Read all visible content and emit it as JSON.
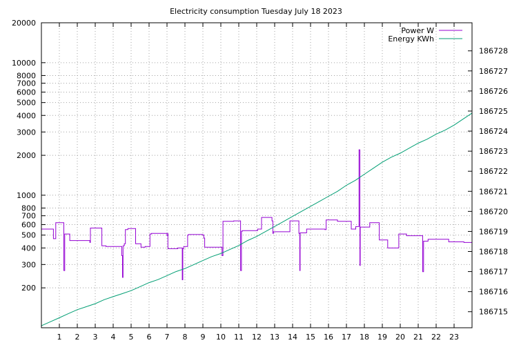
{
  "chart_data": {
    "type": "line",
    "title": "Electricity consumption Tuesday July 18 2023",
    "xlabel": "",
    "ylabel": "",
    "y2label": "",
    "grid": true,
    "legend_position": "top-right",
    "xlim": [
      0,
      24
    ],
    "x_ticks": [
      1,
      2,
      3,
      4,
      5,
      6,
      7,
      8,
      9,
      10,
      11,
      12,
      13,
      14,
      15,
      16,
      17,
      18,
      19,
      20,
      21,
      22,
      23
    ],
    "y_scale": "log",
    "ylim": [
      100,
      20000
    ],
    "y_ticks": [
      200,
      300,
      400,
      500,
      600,
      700,
      800,
      1000,
      2000,
      3000,
      4000,
      5000,
      6000,
      7000,
      8000,
      10000,
      20000
    ],
    "y_labeled_ticks": [
      200,
      300,
      400,
      500,
      600,
      700,
      800,
      1000,
      2000,
      3000,
      4000,
      5000,
      6000,
      7000,
      8000,
      10000,
      20000
    ],
    "y2lim": [
      186714.2,
      186729.4
    ],
    "y2_ticks": [
      186715,
      186716,
      186717,
      186718,
      186719,
      186720,
      186721,
      186722,
      186723,
      186724,
      186725,
      186726,
      186727,
      186728
    ],
    "series": [
      {
        "name": "Power W",
        "axis": "y",
        "color": "#9400d3",
        "step": true,
        "x": [
          0,
          0.67,
          0.8,
          1.25,
          1.3,
          1.58,
          2.7,
          2.73,
          2.77,
          3.37,
          3.42,
          3.6,
          4.48,
          4.52,
          4.55,
          4.62,
          4.68,
          4.82,
          5.25,
          5.3,
          5.55,
          5.78,
          6.05,
          6.13,
          7.0,
          7.05,
          7.05,
          7.6,
          7.85,
          7.88,
          7.93,
          8.15,
          8.2,
          9.0,
          9.05,
          9.1,
          10.03,
          10.07,
          10.12,
          10.35,
          10.72,
          11.1,
          11.15,
          11.2,
          12.05,
          12.27,
          12.85,
          12.9,
          12.93,
          13.85,
          13.9,
          14.35,
          14.4,
          14.42,
          14.47,
          14.78,
          15.8,
          15.87,
          16.45,
          16.5,
          16.55,
          17.27,
          17.52,
          17.7,
          17.75,
          17.77,
          17.8,
          18.3,
          18.83,
          18.88,
          19.3,
          19.87,
          19.92,
          20.35,
          21.2,
          21.25,
          21.3,
          21.55,
          22.6,
          22.7,
          23.55,
          24
        ],
        "values": [
          555,
          470,
          620,
          270,
          510,
          455,
          440,
          565,
          565,
          415,
          415,
          410,
          350,
          240,
          415,
          430,
          550,
          560,
          430,
          430,
          405,
          410,
          510,
          515,
          495,
          520,
          395,
          400,
          230,
          395,
          410,
          500,
          505,
          500,
          475,
          405,
          405,
          350,
          635,
          635,
          640,
          270,
          535,
          540,
          555,
          680,
          640,
          515,
          530,
          640,
          640,
          515,
          270,
          520,
          520,
          555,
          550,
          650,
          650,
          635,
          635,
          555,
          580,
          2200,
          295,
          575,
          575,
          620,
          460,
          460,
          400,
          400,
          510,
          495,
          495,
          265,
          450,
          465,
          465,
          445,
          440,
          490
        ]
      },
      {
        "name": "Energy KWh",
        "axis": "y2",
        "color": "#009e73",
        "step": false,
        "x": [
          0,
          0.5,
          1.0,
          1.5,
          2.0,
          2.5,
          3.0,
          3.5,
          4.0,
          4.5,
          5.0,
          5.5,
          6.0,
          6.5,
          7.0,
          7.5,
          8.0,
          8.5,
          9.0,
          9.5,
          10.0,
          10.5,
          11.0,
          11.5,
          12.0,
          12.5,
          13.0,
          13.5,
          14.0,
          14.5,
          15.0,
          15.5,
          16.0,
          16.5,
          17.0,
          17.5,
          18.0,
          18.5,
          19.0,
          19.5,
          20.0,
          20.5,
          21.0,
          21.5,
          22.0,
          22.5,
          23.0,
          23.5,
          24.0
        ],
        "values": [
          186714.3,
          186714.5,
          186714.7,
          186714.9,
          186715.1,
          186715.25,
          186715.4,
          186715.6,
          186715.75,
          186715.9,
          186716.05,
          186716.25,
          186716.45,
          186716.6,
          186716.8,
          186717.0,
          186717.15,
          186717.35,
          186717.55,
          186717.75,
          186717.9,
          186718.1,
          186718.3,
          186718.55,
          186718.75,
          186719.0,
          186719.25,
          186719.5,
          186719.75,
          186720.0,
          186720.25,
          186720.5,
          186720.75,
          186721.0,
          186721.3,
          186721.55,
          186721.85,
          186722.15,
          186722.45,
          186722.7,
          186722.9,
          186723.15,
          186723.4,
          186723.6,
          186723.85,
          186724.05,
          186724.3,
          186724.6,
          186724.9
        ]
      }
    ]
  }
}
